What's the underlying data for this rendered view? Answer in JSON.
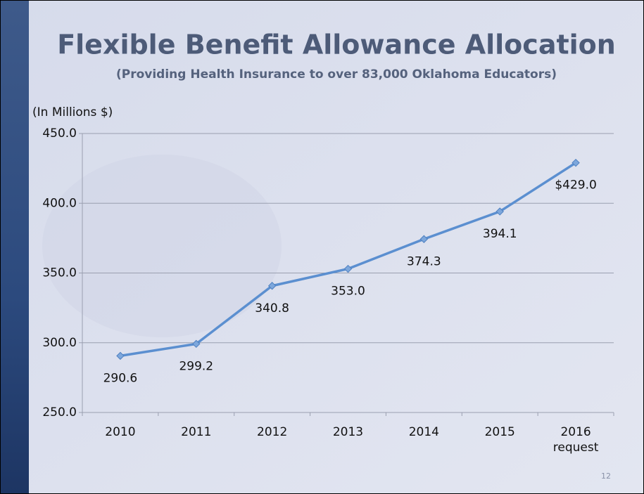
{
  "chart_data": {
    "type": "line",
    "title": "Flexible Benefit Allowance Allocation",
    "subtitle": "(Providing Health Insurance to over 83,000 Oklahoma Educators)",
    "y_label": "(In Millions $)",
    "categories": [
      "2010",
      "2011",
      "2012",
      "2013",
      "2014",
      "2015",
      "2016 request"
    ],
    "series": [
      {
        "name": "Flexible Benefit Allowance",
        "color": "#5b8fd0",
        "values": [
          290.6,
          299.2,
          340.8,
          353.0,
          374.3,
          394.1,
          429.0
        ],
        "value_labels": [
          "290.6",
          "299.2",
          "340.8",
          "353.0",
          "374.3",
          "394.1",
          "$429.0"
        ]
      }
    ],
    "ylim": [
      250,
      450
    ],
    "yticks": [
      {
        "value": 250,
        "label": "250.0"
      },
      {
        "value": 300,
        "label": "300.0"
      },
      {
        "value": 350,
        "label": "350.0"
      },
      {
        "value": 400,
        "label": "400.0"
      },
      {
        "value": 450,
        "label": "450.0"
      }
    ],
    "grid": true,
    "page_number": "12"
  }
}
